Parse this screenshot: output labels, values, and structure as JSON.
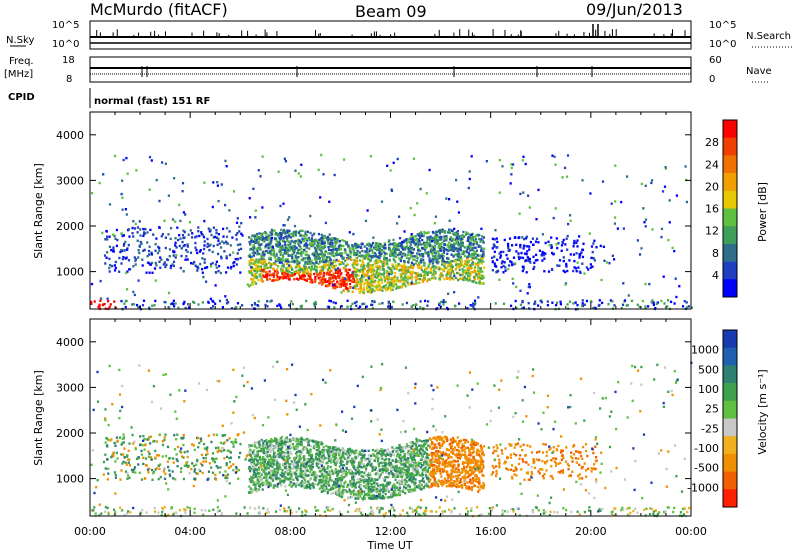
{
  "header": {
    "station": "McMurdo (fitACF)",
    "beam": "Beam 09",
    "date": "09/Jun/2013"
  },
  "strips": {
    "nsky_label": "N.Sky",
    "nsearch_label": "N.Search",
    "freq_label_1": "Freq.",
    "freq_label_2": "[MHz]",
    "nave_label": "Nave",
    "cpid_label": "CPID",
    "nsky_ticks": [
      "10^5",
      "10^0"
    ],
    "nsearch_ticks": [
      "10^5",
      "10^0"
    ],
    "freq_ticks": [
      "18",
      "8"
    ],
    "nave_ticks": [
      "60",
      "0"
    ],
    "cpid_text": "normal (fast) 151 RF"
  },
  "chart_data": [
    {
      "type": "heatmap",
      "name": "Power",
      "ylabel": "Slant Range [km]",
      "xlabel": "Time UT",
      "x_ticks": [
        "00:00",
        "04:00",
        "08:00",
        "12:00",
        "16:00",
        "20:00",
        "00:00"
      ],
      "y_ticks": [
        "1000",
        "2000",
        "3000",
        "4000"
      ],
      "ylim": [
        180,
        4500
      ],
      "xlim": [
        0,
        24
      ],
      "colorbar": {
        "label": "Power [dB]",
        "ticks": [
          "4",
          "8",
          "12",
          "16",
          "20",
          "24",
          "28"
        ],
        "colors": [
          "#0000ff",
          "#1f3fc0",
          "#2e6e8a",
          "#3f9e5a",
          "#5fc040",
          "#e8c800",
          "#f0a000",
          "#f07000",
          "#f04000",
          "#ff0000"
        ]
      }
    },
    {
      "type": "heatmap",
      "name": "Velocity",
      "ylabel": "Slant Range [km]",
      "xlabel": "Time UT",
      "x_ticks": [
        "00:00",
        "04:00",
        "08:00",
        "12:00",
        "16:00",
        "20:00",
        "00:00"
      ],
      "y_ticks": [
        "1000",
        "2000",
        "3000",
        "4000"
      ],
      "ylim": [
        180,
        4500
      ],
      "xlim": [
        0,
        24
      ],
      "colorbar": {
        "label": "Velocity [m s⁻¹]",
        "ticks": [
          "1000",
          "500",
          "100",
          "25",
          "-25",
          "-100",
          "-500",
          "-1000"
        ],
        "colors": [
          "#1a3ab0",
          "#2060b0",
          "#2e8070",
          "#3fa050",
          "#60c040",
          "#c8c8c8",
          "#f0b020",
          "#f09000",
          "#f06000",
          "#ff2000"
        ]
      }
    }
  ]
}
